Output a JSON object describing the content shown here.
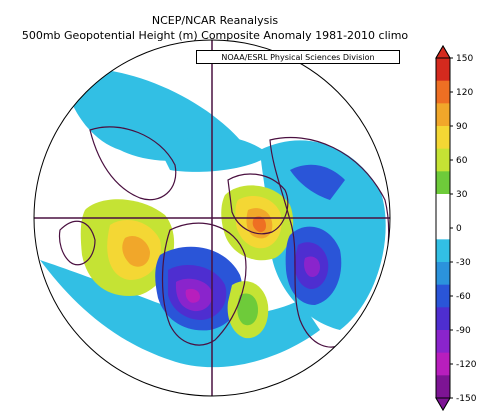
{
  "title_line1": "NCEP/NCAR Reanalysis",
  "title_line2": "500mb Geopotential Height (m) Composite Anomaly 1981-2010 climo",
  "credit": "NOAA/ESRL Physical Sciences Division",
  "map": {
    "projection": "north-polar-stereographic",
    "variable": "500mb geopotential height anomaly",
    "units": "m"
  },
  "colorbar": {
    "ticks": [
      "150",
      "120",
      "90",
      "60",
      "30",
      "0",
      "-30",
      "-60",
      "-90",
      "-120",
      "-150"
    ],
    "colors": [
      "#d42a1e",
      "#ee6f23",
      "#f1a72a",
      "#f4d734",
      "#c5e334",
      "#6ecb3a",
      "#ffffff",
      "#ffffff",
      "#32bfe4",
      "#2b93dc",
      "#2a55d8",
      "#4e2ed0",
      "#8a24cc",
      "#b81ebd",
      "#7d1494"
    ]
  }
}
